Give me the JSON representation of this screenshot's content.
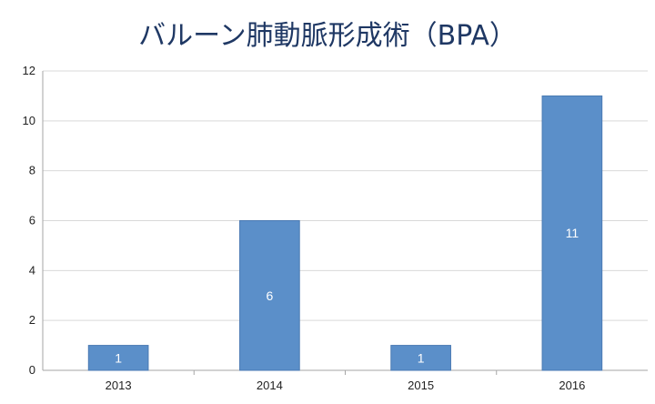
{
  "chart_data": {
    "type": "bar",
    "title": "バルーン肺動脈形成術（BPA）",
    "categories": [
      "2013",
      "2014",
      "2015",
      "2016"
    ],
    "values": [
      1,
      6,
      1,
      11
    ],
    "data_labels": [
      "1",
      "6",
      "1",
      "11"
    ],
    "ylim": [
      0,
      12
    ],
    "yticks": [
      0,
      2,
      4,
      6,
      8,
      10,
      12
    ],
    "ytick_labels": [
      "0",
      "2",
      "4",
      "6",
      "8",
      "10",
      "12"
    ],
    "grid": true,
    "legend": "none",
    "xlabel": "",
    "ylabel": "",
    "bar_color": "#5b8fc9",
    "bar_edge_color": "#4a7ab3",
    "grid_color": "#d9d9d9",
    "axis_color": "#a6a6a6"
  }
}
